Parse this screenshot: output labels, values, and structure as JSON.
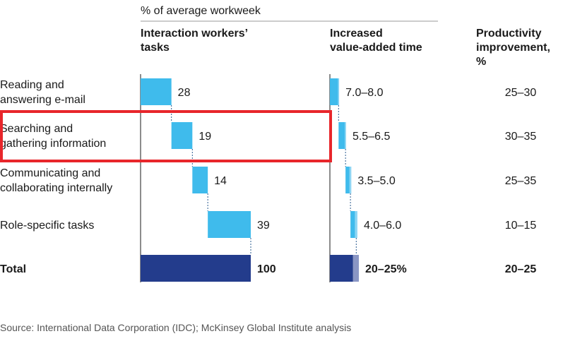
{
  "chart_data": {
    "type": "bar",
    "subtitle": "% of average workweek",
    "columns": {
      "tasks": "Interaction workers’\ntasks",
      "time": "Increased\nvalue-added time",
      "productivity": "Productivity\nimprovement,\n%"
    },
    "categories": [
      "Reading and\nanswering e-mail",
      "Searching and\ngathering information",
      "Communicating and\ncollaborating internally",
      "Role-specific tasks",
      "Total"
    ],
    "task_share": [
      28,
      19,
      14,
      39,
      100
    ],
    "task_share_labels": [
      "28",
      "19",
      "14",
      "39",
      "100"
    ],
    "value_added_time": [
      [
        7.0,
        8.0
      ],
      [
        5.5,
        6.5
      ],
      [
        3.5,
        5.0
      ],
      [
        4.0,
        6.0
      ],
      [
        20,
        25
      ]
    ],
    "value_added_time_labels": [
      "7.0–8.0",
      "5.5–6.5",
      "3.5–5.0",
      "4.0–6.0",
      "20–25%"
    ],
    "productivity_labels": [
      "25–30",
      "30–35",
      "25–35",
      "10–15",
      "20–25"
    ],
    "highlighted_category": "Searching and\ngathering information",
    "source": "Source: International Data Corporation (IDC); McKinsey Global Institute analysis",
    "colors": {
      "bar": "#3fbbec",
      "bar_light": "#8fd6f4",
      "total": "#233c8c",
      "total_light": "#8a96c4",
      "axis": "#1a1a1a",
      "connector": "#2a5b8f",
      "highlight": "#e8262b",
      "text": "#1a1a1a"
    }
  }
}
